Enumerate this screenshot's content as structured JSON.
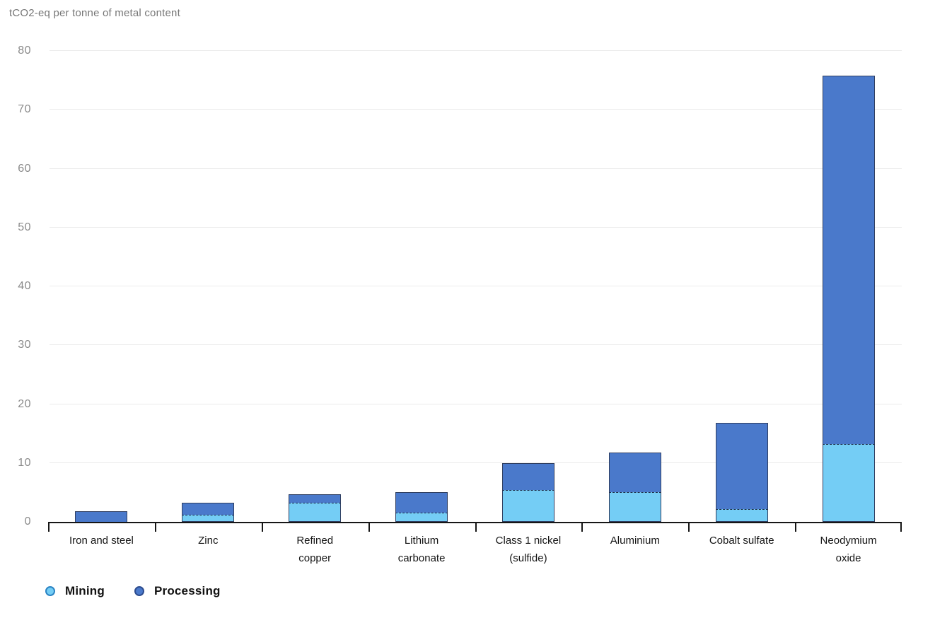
{
  "header": {
    "unit_label": "tCO2-eq per tonne of metal content"
  },
  "chart_data": {
    "type": "bar",
    "stacked": true,
    "title": "",
    "xlabel": "",
    "ylabel": "tCO2-eq per tonne of metal content",
    "ylim": [
      0,
      80
    ],
    "yticks": [
      0,
      10,
      20,
      30,
      40,
      50,
      60,
      70,
      80
    ],
    "grid": true,
    "legend_position": "bottom-left",
    "categories": [
      "Iron and steel",
      "Zinc",
      "Refined\ncopper",
      "Lithium\ncarbonate",
      "Class 1 nickel\n(sulfide)",
      "Aluminium",
      "Cobalt sulfate",
      "Neodymium\noxide"
    ],
    "series": [
      {
        "name": "Mining",
        "color": "#74CDF5",
        "dot_border_color": "#2B84C4",
        "values": [
          0,
          1.2,
          3.3,
          1.6,
          5.4,
          5.0,
          2.2,
          13.2
        ]
      },
      {
        "name": "Processing",
        "color": "#4A79CB",
        "dot_border_color": "#2D4C8E",
        "values": [
          1.8,
          2.0,
          1.4,
          3.4,
          4.6,
          6.8,
          14.6,
          62.6
        ]
      }
    ],
    "colors": {
      "gridline": "#ebebeb",
      "axis": "#161616",
      "bar_border": "#2F3E60",
      "tick_label": "#8a8a8a",
      "title_text": "#767676"
    }
  }
}
